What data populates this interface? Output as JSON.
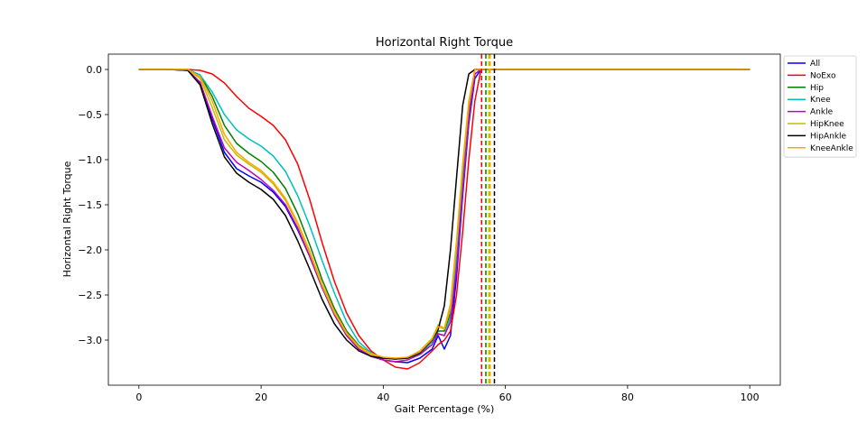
{
  "chart_data": {
    "type": "line",
    "title": "Horizontal Right Torque",
    "xlabel": "Gait Percentage (%)",
    "ylabel": "Horizontal Right Torque",
    "xlim": [
      -5,
      105
    ],
    "ylim": [
      -3.5,
      0.17
    ],
    "xticks": [
      0,
      20,
      40,
      60,
      80,
      100
    ],
    "yticks": [
      0.0,
      -0.5,
      -1.0,
      -1.5,
      -2.0,
      -2.5,
      -3.0
    ],
    "xtick_labels": [
      "0",
      "20",
      "40",
      "60",
      "80",
      "100"
    ],
    "ytick_labels": [
      "0.0",
      "−0.5",
      "−1.0",
      "−1.5",
      "−2.0",
      "−2.5",
      "−3.0"
    ],
    "grid": false,
    "legend_position": "outside right, top",
    "series": [
      {
        "name": "All",
        "color": "#0000ff",
        "x": [
          0,
          5,
          8,
          10,
          12,
          14,
          16,
          18,
          20,
          22,
          24,
          26,
          28,
          30,
          32,
          34,
          36,
          38,
          40,
          42,
          44,
          46,
          48,
          49,
          50,
          51,
          52,
          53,
          54,
          55,
          56,
          58,
          60,
          70,
          80,
          90,
          100
        ],
        "y": [
          0,
          0,
          -0.01,
          -0.15,
          -0.55,
          -0.92,
          -1.1,
          -1.18,
          -1.25,
          -1.36,
          -1.52,
          -1.78,
          -2.08,
          -2.42,
          -2.72,
          -2.95,
          -3.1,
          -3.18,
          -3.22,
          -3.24,
          -3.25,
          -3.2,
          -3.1,
          -2.95,
          -3.1,
          -2.95,
          -2.3,
          -1.4,
          -0.6,
          -0.1,
          0,
          0,
          0,
          0,
          0,
          0,
          0
        ]
      },
      {
        "name": "NoExo",
        "color": "#ff0000",
        "x": [
          0,
          5,
          8,
          10,
          12,
          14,
          16,
          18,
          20,
          22,
          24,
          26,
          28,
          30,
          32,
          34,
          36,
          38,
          40,
          42,
          44,
          46,
          48,
          49,
          50,
          51,
          52,
          53,
          54,
          55,
          56,
          58,
          60,
          70,
          80,
          90,
          100
        ],
        "y": [
          0,
          0,
          0,
          -0.01,
          -0.05,
          -0.15,
          -0.3,
          -0.43,
          -0.52,
          -0.62,
          -0.78,
          -1.05,
          -1.45,
          -1.92,
          -2.35,
          -2.7,
          -2.95,
          -3.12,
          -3.22,
          -3.3,
          -3.32,
          -3.25,
          -3.12,
          -3.05,
          -3.0,
          -2.9,
          -2.5,
          -1.8,
          -1.0,
          -0.35,
          0,
          0,
          0,
          0,
          0,
          0,
          0
        ]
      },
      {
        "name": "Hip",
        "color": "#008000",
        "x": [
          0,
          5,
          8,
          10,
          12,
          14,
          16,
          18,
          20,
          22,
          24,
          26,
          28,
          30,
          32,
          34,
          36,
          38,
          40,
          42,
          44,
          46,
          48,
          49,
          50,
          51,
          52,
          53,
          54,
          55,
          56,
          58,
          60,
          70,
          80,
          90,
          100
        ],
        "y": [
          0,
          0,
          0,
          -0.06,
          -0.3,
          -0.62,
          -0.82,
          -0.93,
          -1.02,
          -1.14,
          -1.32,
          -1.6,
          -1.95,
          -2.33,
          -2.65,
          -2.9,
          -3.06,
          -3.15,
          -3.2,
          -3.21,
          -3.2,
          -3.15,
          -3.02,
          -2.9,
          -2.9,
          -2.7,
          -2.0,
          -1.2,
          -0.45,
          0,
          0,
          0,
          0,
          0,
          0,
          0,
          0
        ]
      },
      {
        "name": "Knee",
        "color": "#00bfbf",
        "x": [
          0,
          5,
          8,
          10,
          12,
          14,
          16,
          18,
          20,
          22,
          24,
          26,
          28,
          30,
          32,
          34,
          36,
          38,
          40,
          42,
          44,
          46,
          48,
          49,
          50,
          51,
          52,
          53,
          54,
          55,
          56,
          58,
          60,
          70,
          80,
          90,
          100
        ],
        "y": [
          0,
          0,
          0,
          -0.06,
          -0.25,
          -0.5,
          -0.67,
          -0.77,
          -0.85,
          -0.96,
          -1.13,
          -1.4,
          -1.74,
          -2.12,
          -2.48,
          -2.8,
          -3.02,
          -3.14,
          -3.2,
          -3.21,
          -3.19,
          -3.14,
          -3.02,
          -2.93,
          -2.95,
          -2.75,
          -2.1,
          -1.3,
          -0.55,
          -0.05,
          0,
          0,
          0,
          0,
          0,
          0,
          0
        ]
      },
      {
        "name": "Ankle",
        "color": "#bf00bf",
        "x": [
          0,
          5,
          8,
          10,
          12,
          14,
          16,
          18,
          20,
          22,
          24,
          26,
          28,
          30,
          32,
          34,
          36,
          38,
          40,
          42,
          44,
          46,
          48,
          49,
          50,
          51,
          52,
          53,
          54,
          55,
          56,
          58,
          60,
          70,
          80,
          90,
          100
        ],
        "y": [
          0,
          0,
          -0.01,
          -0.14,
          -0.52,
          -0.87,
          -1.03,
          -1.12,
          -1.22,
          -1.34,
          -1.5,
          -1.76,
          -2.08,
          -2.42,
          -2.72,
          -2.95,
          -3.1,
          -3.18,
          -3.22,
          -3.24,
          -3.22,
          -3.16,
          -3.05,
          -2.93,
          -2.95,
          -2.8,
          -2.2,
          -1.35,
          -0.55,
          -0.05,
          0,
          0,
          0,
          0,
          0,
          0,
          0
        ]
      },
      {
        "name": "HipKnee",
        "color": "#bfbf00",
        "x": [
          0,
          5,
          8,
          10,
          12,
          14,
          16,
          18,
          20,
          22,
          24,
          26,
          28,
          30,
          32,
          34,
          36,
          38,
          40,
          42,
          44,
          46,
          48,
          49,
          50,
          51,
          52,
          53,
          54,
          55,
          56,
          58,
          60,
          70,
          80,
          90,
          100
        ],
        "y": [
          0,
          0,
          0,
          -0.1,
          -0.42,
          -0.78,
          -0.95,
          -1.05,
          -1.14,
          -1.27,
          -1.45,
          -1.72,
          -2.04,
          -2.4,
          -2.7,
          -2.93,
          -3.08,
          -3.16,
          -3.2,
          -3.21,
          -3.19,
          -3.12,
          -2.98,
          -2.83,
          -2.87,
          -2.6,
          -1.9,
          -1.05,
          -0.35,
          0,
          0,
          0,
          0,
          0,
          0,
          0,
          0
        ]
      },
      {
        "name": "HipAnkle",
        "color": "#000000",
        "x": [
          0,
          5,
          8,
          10,
          12,
          14,
          16,
          18,
          20,
          22,
          24,
          26,
          28,
          30,
          32,
          34,
          36,
          38,
          40,
          42,
          44,
          46,
          48,
          49,
          50,
          51,
          52,
          53,
          54,
          55,
          56,
          58,
          60,
          70,
          80,
          90,
          100
        ],
        "y": [
          0,
          0,
          -0.01,
          -0.17,
          -0.6,
          -0.97,
          -1.15,
          -1.25,
          -1.33,
          -1.44,
          -1.62,
          -1.9,
          -2.22,
          -2.55,
          -2.82,
          -3.0,
          -3.12,
          -3.18,
          -3.2,
          -3.21,
          -3.2,
          -3.14,
          -3.0,
          -2.88,
          -2.62,
          -2.0,
          -1.2,
          -0.4,
          -0.05,
          0,
          0,
          0,
          0,
          0,
          0,
          0,
          0
        ]
      },
      {
        "name": "KneeAnkle",
        "color": "#ffa500",
        "x": [
          0,
          5,
          8,
          10,
          12,
          14,
          16,
          18,
          20,
          22,
          24,
          26,
          28,
          30,
          32,
          34,
          36,
          38,
          40,
          42,
          44,
          46,
          48,
          49,
          50,
          51,
          52,
          53,
          54,
          55,
          56,
          58,
          60,
          70,
          80,
          90,
          100
        ],
        "y": [
          0,
          0,
          0,
          -0.08,
          -0.35,
          -0.72,
          -0.92,
          -1.03,
          -1.12,
          -1.25,
          -1.43,
          -1.7,
          -2.02,
          -2.38,
          -2.68,
          -2.92,
          -3.07,
          -3.15,
          -3.19,
          -3.2,
          -3.19,
          -3.13,
          -2.99,
          -2.85,
          -2.88,
          -2.65,
          -1.95,
          -1.1,
          -0.4,
          0,
          0,
          0,
          0,
          0,
          0,
          0,
          0
        ]
      }
    ],
    "vertical_lines": [
      {
        "x": 56.1,
        "color": "#ff0000",
        "style": "dashed"
      },
      {
        "x": 56.8,
        "color": "#008000",
        "style": "dashed"
      },
      {
        "x": 57.3,
        "color": "#bfbf00",
        "style": "dashed"
      },
      {
        "x": 57.5,
        "color": "#ffa500",
        "style": "dashed"
      },
      {
        "x": 58.2,
        "color": "#000000",
        "style": "dashed"
      }
    ]
  }
}
